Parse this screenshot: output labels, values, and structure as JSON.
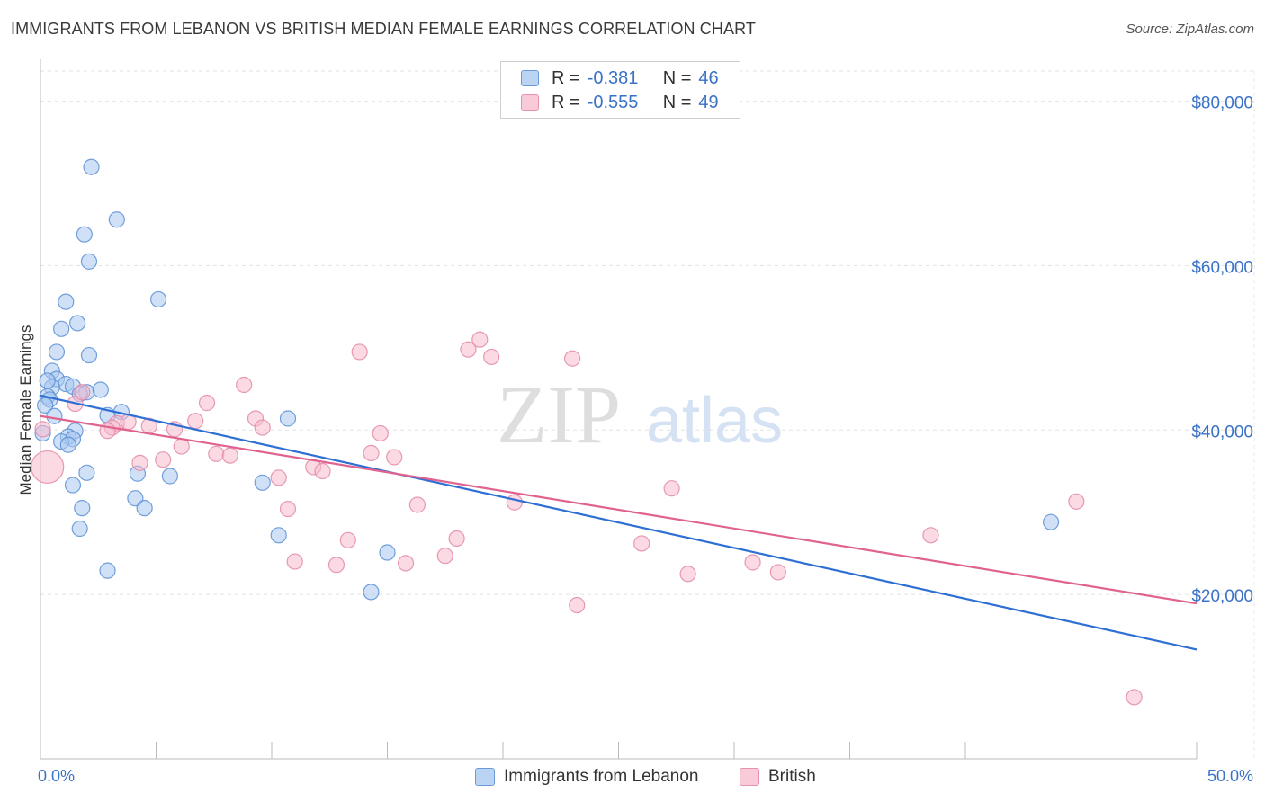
{
  "header": {
    "title": "IMMIGRANTS FROM LEBANON VS BRITISH MEDIAN FEMALE EARNINGS CORRELATION CHART",
    "source": "Source: ZipAtlas.com"
  },
  "watermark": {
    "zip": "ZIP",
    "atlas": "atlas"
  },
  "legend": {
    "r_label": "R =",
    "n_label": "N =",
    "series1": {
      "r": "-0.381",
      "n": "46"
    },
    "series2": {
      "r": "-0.555",
      "n": "49"
    }
  },
  "colors": {
    "lebanon_fill": "#a9c8f0",
    "lebanon_stroke": "#5b8fd6",
    "lebanon_line": "#2e6fd4",
    "british_fill": "#f7bccd",
    "british_stroke": "#e389a6",
    "british_line": "#e0628e",
    "tick_label": "#3a72c8"
  },
  "chart_data": {
    "type": "scatter",
    "title": "IMMIGRANTS FROM LEBANON VS BRITISH MEDIAN FEMALE EARNINGS CORRELATION CHART",
    "ylabel": "Median Female Earnings",
    "xlabel": "",
    "x_tick_labels": [
      "0.0%",
      "50.0%"
    ],
    "y_tick_labels": [
      "$20,000",
      "$40,000",
      "$60,000",
      "$80,000"
    ],
    "y_ticks": [
      20000,
      40000,
      60000,
      80000
    ],
    "xlim": [
      0,
      50
    ],
    "ylim": [
      0,
      84000
    ],
    "grid": true,
    "legend_placement": "bottom-center",
    "series": [
      {
        "name": "Immigrants from Lebanon",
        "r": -0.381,
        "n": 46,
        "trend": {
          "x": [
            0,
            50
          ],
          "y": [
            44200,
            13300
          ]
        },
        "points": [
          {
            "x": 2.2,
            "y": 72000
          },
          {
            "x": 3.3,
            "y": 65600
          },
          {
            "x": 1.9,
            "y": 63800
          },
          {
            "x": 2.1,
            "y": 60500
          },
          {
            "x": 5.1,
            "y": 55900
          },
          {
            "x": 1.1,
            "y": 55600
          },
          {
            "x": 1.6,
            "y": 53000
          },
          {
            "x": 0.9,
            "y": 52300
          },
          {
            "x": 0.7,
            "y": 49500
          },
          {
            "x": 2.1,
            "y": 49100
          },
          {
            "x": 0.5,
            "y": 47200
          },
          {
            "x": 0.7,
            "y": 46200
          },
          {
            "x": 1.1,
            "y": 45600
          },
          {
            "x": 0.5,
            "y": 45200
          },
          {
            "x": 1.4,
            "y": 45300
          },
          {
            "x": 2.0,
            "y": 44600
          },
          {
            "x": 1.7,
            "y": 44400
          },
          {
            "x": 0.3,
            "y": 44100
          },
          {
            "x": 0.4,
            "y": 43700
          },
          {
            "x": 0.2,
            "y": 43000
          },
          {
            "x": 3.5,
            "y": 42200
          },
          {
            "x": 2.9,
            "y": 41800
          },
          {
            "x": 0.6,
            "y": 41700
          },
          {
            "x": 10.7,
            "y": 41400
          },
          {
            "x": 1.5,
            "y": 39900
          },
          {
            "x": 0.1,
            "y": 39600
          },
          {
            "x": 1.2,
            "y": 39200
          },
          {
            "x": 1.4,
            "y": 38900
          },
          {
            "x": 0.9,
            "y": 38600
          },
          {
            "x": 1.2,
            "y": 38200
          },
          {
            "x": 2.0,
            "y": 34800
          },
          {
            "x": 4.2,
            "y": 34700
          },
          {
            "x": 5.6,
            "y": 34400
          },
          {
            "x": 9.6,
            "y": 33600
          },
          {
            "x": 1.4,
            "y": 33300
          },
          {
            "x": 4.1,
            "y": 31700
          },
          {
            "x": 1.8,
            "y": 30500
          },
          {
            "x": 4.5,
            "y": 30500
          },
          {
            "x": 1.7,
            "y": 28000
          },
          {
            "x": 10.3,
            "y": 27200
          },
          {
            "x": 43.7,
            "y": 28800
          },
          {
            "x": 15.0,
            "y": 25100
          },
          {
            "x": 2.9,
            "y": 22900
          },
          {
            "x": 14.3,
            "y": 20300
          },
          {
            "x": 2.6,
            "y": 44900
          },
          {
            "x": 0.3,
            "y": 46000
          }
        ]
      },
      {
        "name": "British",
        "r": -0.555,
        "n": 49,
        "trend": {
          "x": [
            0,
            50
          ],
          "y": [
            41700,
            18900
          ]
        },
        "points": [
          {
            "x": 0.3,
            "y": 35500,
            "big": true
          },
          {
            "x": 0.1,
            "y": 40100
          },
          {
            "x": 1.5,
            "y": 43200
          },
          {
            "x": 1.8,
            "y": 44600
          },
          {
            "x": 3.3,
            "y": 40800
          },
          {
            "x": 3.1,
            "y": 40300
          },
          {
            "x": 3.8,
            "y": 41000
          },
          {
            "x": 4.3,
            "y": 36000
          },
          {
            "x": 4.7,
            "y": 40500
          },
          {
            "x": 5.3,
            "y": 36400
          },
          {
            "x": 5.8,
            "y": 40100
          },
          {
            "x": 6.1,
            "y": 38000
          },
          {
            "x": 6.7,
            "y": 41100
          },
          {
            "x": 7.2,
            "y": 43300
          },
          {
            "x": 7.6,
            "y": 37100
          },
          {
            "x": 8.2,
            "y": 36900
          },
          {
            "x": 8.8,
            "y": 45500
          },
          {
            "x": 9.3,
            "y": 41400
          },
          {
            "x": 9.6,
            "y": 40300
          },
          {
            "x": 10.3,
            "y": 34200
          },
          {
            "x": 10.7,
            "y": 30400
          },
          {
            "x": 11.0,
            "y": 24000
          },
          {
            "x": 11.8,
            "y": 35500
          },
          {
            "x": 12.2,
            "y": 35000
          },
          {
            "x": 12.8,
            "y": 23600
          },
          {
            "x": 13.3,
            "y": 26600
          },
          {
            "x": 13.8,
            "y": 49500
          },
          {
            "x": 14.3,
            "y": 37200
          },
          {
            "x": 14.7,
            "y": 39600
          },
          {
            "x": 15.3,
            "y": 36700
          },
          {
            "x": 15.8,
            "y": 23800
          },
          {
            "x": 16.3,
            "y": 30900
          },
          {
            "x": 17.5,
            "y": 24700
          },
          {
            "x": 18.0,
            "y": 26800
          },
          {
            "x": 18.5,
            "y": 49800
          },
          {
            "x": 19.0,
            "y": 51000
          },
          {
            "x": 19.5,
            "y": 48900
          },
          {
            "x": 20.5,
            "y": 31200
          },
          {
            "x": 23.0,
            "y": 48700
          },
          {
            "x": 23.2,
            "y": 18700
          },
          {
            "x": 26.0,
            "y": 26200
          },
          {
            "x": 27.3,
            "y": 32900
          },
          {
            "x": 28.0,
            "y": 22500
          },
          {
            "x": 30.8,
            "y": 23900
          },
          {
            "x": 31.9,
            "y": 22700
          },
          {
            "x": 38.5,
            "y": 27200
          },
          {
            "x": 44.8,
            "y": 31300
          },
          {
            "x": 47.3,
            "y": 7500
          },
          {
            "x": 2.9,
            "y": 39900
          }
        ]
      }
    ]
  }
}
